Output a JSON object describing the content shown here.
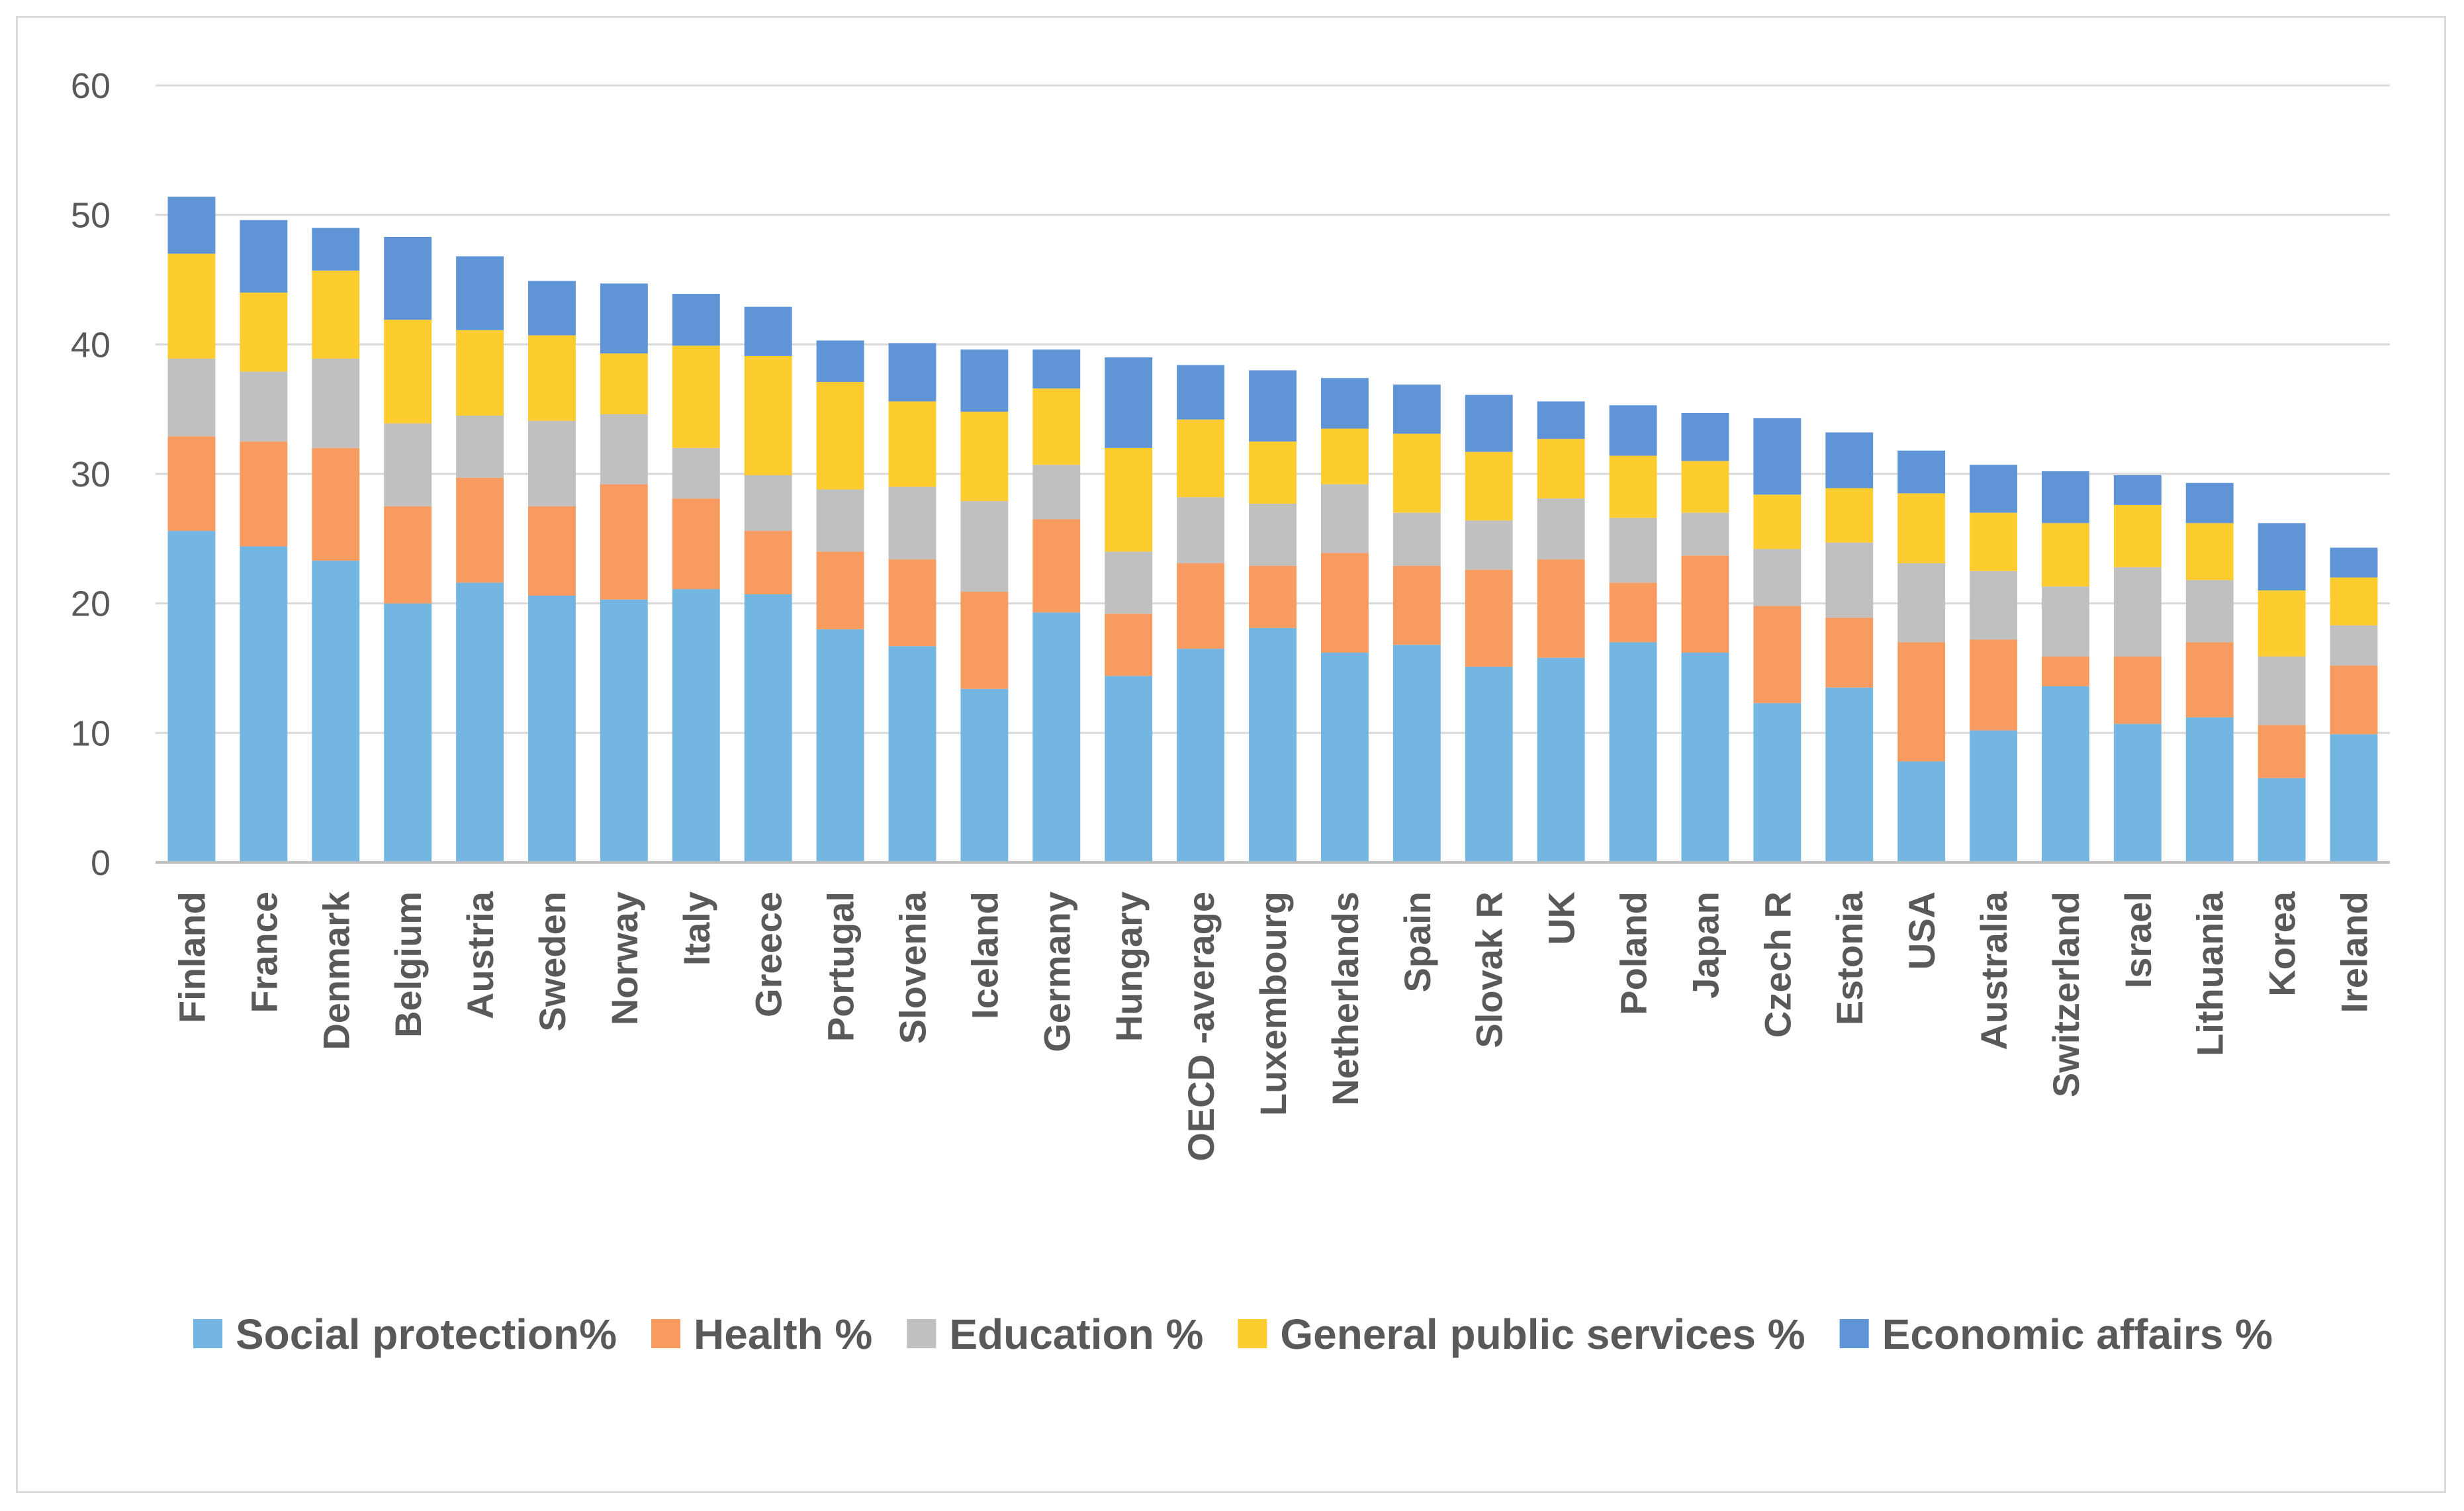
{
  "chart_data": {
    "type": "bar",
    "stacked": true,
    "title": "",
    "xlabel": "",
    "ylabel": "",
    "ylim": [
      0,
      60
    ],
    "yticks": [
      "0",
      "10",
      "20",
      "30",
      "40",
      "50",
      "60"
    ],
    "grid": true,
    "legend_position": "bottom",
    "categories": [
      "Finland",
      "France",
      "Denmark",
      "Belgium",
      "Austria",
      "Sweden",
      "Norway",
      "Italy",
      "Greece",
      "Portugal",
      "Slovenia",
      "Iceland",
      "Germany",
      "Hungary",
      "OECD -average",
      "Luxembourg",
      "Netherlands",
      "Spain",
      "Slovak R",
      "UK",
      "Poland",
      "Japan",
      "Czech R",
      "Estonia",
      "USA",
      "Australia",
      "Switzerland",
      "Israel",
      "Lithuania",
      "Korea",
      "Ireland"
    ],
    "series": [
      {
        "name": "Social protection%",
        "color": "#74b6e2",
        "values": [
          25.6,
          24.4,
          23.3,
          20.0,
          21.6,
          20.6,
          20.3,
          21.1,
          20.7,
          18.0,
          16.7,
          13.4,
          19.3,
          14.4,
          16.5,
          18.1,
          16.2,
          16.8,
          15.1,
          15.8,
          17.0,
          16.2,
          12.3,
          13.5,
          7.8,
          10.2,
          13.6,
          10.7,
          11.2,
          6.5,
          9.9
        ]
      },
      {
        "name": "Health %",
        "color": "#f79b61",
        "values": [
          7.3,
          8.1,
          8.7,
          7.5,
          8.1,
          6.9,
          8.9,
          7.0,
          4.9,
          6.0,
          6.7,
          7.5,
          7.2,
          4.8,
          6.6,
          4.8,
          7.7,
          6.1,
          7.5,
          7.6,
          4.6,
          7.5,
          7.5,
          5.4,
          9.2,
          7.0,
          2.3,
          5.2,
          5.8,
          4.1,
          5.3
        ]
      },
      {
        "name": "Education %",
        "color": "#c0c0c0",
        "values": [
          6.0,
          5.4,
          6.9,
          6.4,
          4.8,
          6.6,
          5.4,
          3.9,
          4.3,
          4.8,
          5.6,
          7.0,
          4.2,
          4.8,
          5.1,
          4.8,
          5.3,
          4.1,
          3.8,
          4.7,
          5.0,
          3.3,
          4.4,
          5.8,
          6.1,
          5.3,
          5.4,
          6.9,
          4.8,
          5.3,
          3.1
        ]
      },
      {
        "name": "General public services %",
        "color": "#fdcc2f",
        "values": [
          8.1,
          6.1,
          6.8,
          8.0,
          6.6,
          6.6,
          4.7,
          7.9,
          9.2,
          8.3,
          6.6,
          6.9,
          5.9,
          8.0,
          6.0,
          4.8,
          4.3,
          6.1,
          5.3,
          4.6,
          4.8,
          4.0,
          4.2,
          4.2,
          5.4,
          4.5,
          4.9,
          4.8,
          4.4,
          5.1,
          3.7
        ]
      },
      {
        "name": "Economic affairs %",
        "color": "#5f95d7",
        "values": [
          4.4,
          5.6,
          3.3,
          6.4,
          5.7,
          4.2,
          5.4,
          4.0,
          3.8,
          3.2,
          4.5,
          4.8,
          3.0,
          7.0,
          4.2,
          5.5,
          3.9,
          3.8,
          4.4,
          2.9,
          3.9,
          3.7,
          5.9,
          4.3,
          3.3,
          3.7,
          4.0,
          2.3,
          3.1,
          5.2,
          2.3
        ]
      }
    ]
  }
}
